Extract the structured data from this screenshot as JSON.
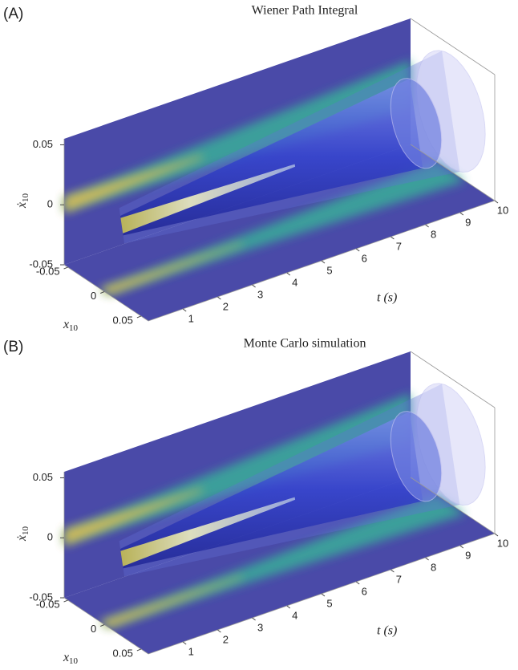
{
  "chart_data": [
    {
      "type": "surface3d",
      "panel_label": "(A)",
      "title": "Wiener Path Integral",
      "tlabel": "t (s)",
      "xlabel": "x",
      "xlabel_sub": "10",
      "ylabel": "ẋ",
      "ylabel_sub": "10",
      "tlim": [
        0,
        10
      ],
      "xlim": [
        -0.055,
        0.06
      ],
      "ylim": [
        -0.05,
        0.055
      ],
      "tticks": [
        1,
        2,
        3,
        4,
        5,
        6,
        7,
        8,
        9,
        10
      ],
      "xticks": [
        -0.05,
        0,
        0.05
      ],
      "yticks": [
        -0.05,
        0,
        0.05
      ]
    },
    {
      "type": "surface3d",
      "panel_label": "(B)",
      "title": "Monte Carlo simulation",
      "tlabel": "t (s)",
      "xlabel": "x",
      "xlabel_sub": "10",
      "ylabel": "ẋ",
      "ylabel_sub": "10",
      "tlim": [
        0,
        10
      ],
      "xlim": [
        -0.055,
        0.06
      ],
      "ylim": [
        -0.05,
        0.055
      ],
      "tticks": [
        1,
        2,
        3,
        4,
        5,
        6,
        7,
        8,
        9,
        10
      ],
      "xticks": [
        -0.05,
        0,
        0.05
      ],
      "yticks": [
        -0.05,
        0,
        0.05
      ]
    }
  ]
}
